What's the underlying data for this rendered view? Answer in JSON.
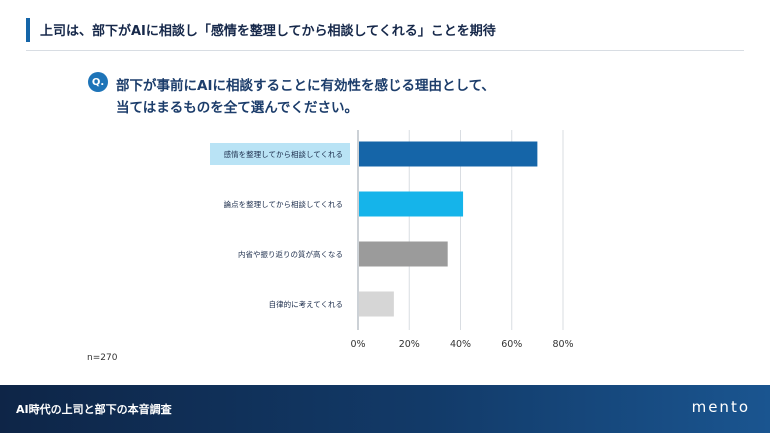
{
  "header": {
    "title": "上司は、部下がAIに相談し「感情を整理してから相談してくれる」ことを期待"
  },
  "question": {
    "badge": "Q.",
    "line1": "部下が事前にAIに相談することに有効性を感じる理由として、",
    "line2": "当てはまるものを全て選んでください。"
  },
  "note": "n=270",
  "footer": {
    "title": "AI時代の上司と部下の本音調査",
    "logo": "mento"
  },
  "chart_data": {
    "type": "bar",
    "orientation": "horizontal",
    "categories": [
      "感情を整理してから相談してくれる",
      "論点を整理してから相談してくれる",
      "内省や振り返りの質が高くなる",
      "自律的に考えてくれる"
    ],
    "values": [
      70,
      41,
      35,
      14
    ],
    "colors": [
      "#1565a8",
      "#15b4ea",
      "#9b9b9b",
      "#d6d6d6"
    ],
    "highlight_index": 0,
    "highlight_color": "#b9e3f5",
    "xlim": [
      0,
      80
    ],
    "xticks": [
      0,
      20,
      40,
      60,
      80
    ],
    "tick_suffix": "%",
    "grid": true
  }
}
